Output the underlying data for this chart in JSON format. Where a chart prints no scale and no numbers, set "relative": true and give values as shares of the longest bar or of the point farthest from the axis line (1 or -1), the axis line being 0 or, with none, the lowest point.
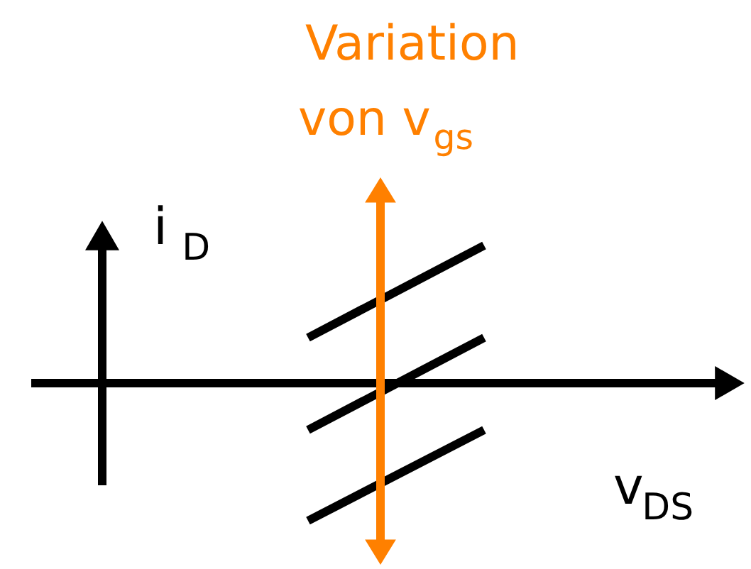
{
  "chart_data": {
    "type": "line",
    "relative": true,
    "categories": [
      null,
      null
    ],
    "series": [
      {
        "color": "#000000",
        "values": [
          0.33,
          1
        ]
      },
      {
        "color": "#000000",
        "values": [
          -0.34,
          0.33
        ]
      },
      {
        "color": "#000000",
        "values": [
          -1,
          -0.34
        ]
      }
    ],
    "xlabel": "v$_{DS}$",
    "ylabel": "i$_{D}$",
    "annotations": [
      "Variation von v$_{gs}$"
    ]
  }
}
